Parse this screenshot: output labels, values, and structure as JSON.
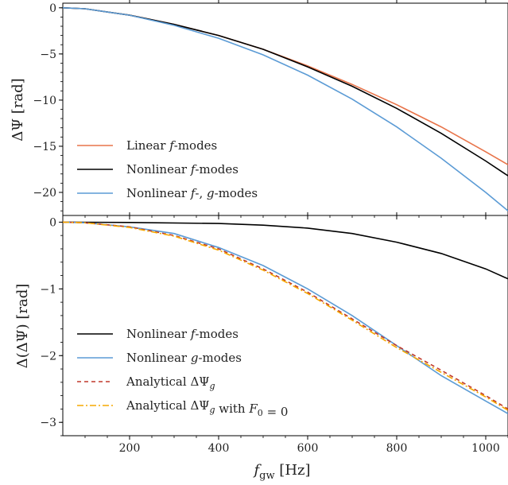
{
  "chart_data": [
    {
      "type": "line",
      "panel": "top",
      "title": "",
      "xlabel": "",
      "ylabel": "ΔΨ [rad]",
      "xlim": [
        50,
        1050
      ],
      "ylim": [
        -22.5,
        0.5
      ],
      "yticks": [
        0,
        -5,
        -10,
        -15,
        -20
      ],
      "ytick_labels": [
        "0",
        "−5",
        "−10",
        "−15",
        "−20"
      ],
      "xticks": [
        200,
        400,
        600,
        800,
        1000
      ],
      "legend_placement": "lower-left",
      "series": [
        {
          "name": "Linear f-modes",
          "legend_text": "Linear f-modes",
          "color": "#e8744a",
          "dash": "solid",
          "x": [
            50,
            100,
            200,
            300,
            400,
            500,
            600,
            700,
            800,
            900,
            1000,
            1050
          ],
          "y": [
            0,
            -0.1,
            -0.8,
            -1.8,
            -3.0,
            -4.5,
            -6.3,
            -8.3,
            -10.5,
            -12.9,
            -15.6,
            -17.0
          ]
        },
        {
          "name": "Nonlinear f-modes",
          "legend_text": "Nonlinear f-modes",
          "color": "#000000",
          "dash": "solid",
          "x": [
            50,
            100,
            200,
            300,
            400,
            500,
            600,
            700,
            800,
            900,
            1000,
            1050
          ],
          "y": [
            0,
            -0.1,
            -0.8,
            -1.8,
            -3.0,
            -4.5,
            -6.4,
            -8.5,
            -10.9,
            -13.6,
            -16.6,
            -18.2
          ]
        },
        {
          "name": "Nonlinear f-, g-modes",
          "legend_text": "Nonlinear f-, g-modes",
          "color": "#5b9bd5",
          "dash": "solid",
          "x": [
            50,
            100,
            200,
            300,
            400,
            500,
            600,
            700,
            800,
            900,
            1000,
            1050
          ],
          "y": [
            0,
            -0.1,
            -0.8,
            -1.9,
            -3.3,
            -5.1,
            -7.3,
            -9.9,
            -12.9,
            -16.3,
            -20.0,
            -22.0
          ]
        }
      ]
    },
    {
      "type": "line",
      "panel": "bottom",
      "title": "",
      "xlabel": "f_gw [Hz]",
      "ylabel": "Δ(ΔΨ) [rad]",
      "xlim": [
        50,
        1050
      ],
      "ylim": [
        -3.2,
        0.1
      ],
      "yticks": [
        0,
        -1,
        -2,
        -3
      ],
      "ytick_labels": [
        "0",
        "−1",
        "−2",
        "−3"
      ],
      "xticks": [
        200,
        400,
        600,
        800,
        1000
      ],
      "xtick_labels": [
        "200",
        "400",
        "600",
        "800",
        "1000"
      ],
      "legend_placement": "lower-left",
      "series": [
        {
          "name": "Nonlinear f-modes",
          "legend_text": "Nonlinear f-modes",
          "color": "#000000",
          "dash": "solid",
          "x": [
            50,
            200,
            400,
            500,
            600,
            700,
            800,
            900,
            1000,
            1050
          ],
          "y": [
            0,
            -0.005,
            -0.02,
            -0.045,
            -0.09,
            -0.17,
            -0.3,
            -0.47,
            -0.7,
            -0.85
          ]
        },
        {
          "name": "Nonlinear g-modes",
          "legend_text": "Nonlinear g-modes",
          "color": "#5b9bd5",
          "dash": "solid",
          "x": [
            50,
            100,
            200,
            300,
            400,
            500,
            600,
            700,
            800,
            900,
            1000,
            1050
          ],
          "y": [
            0,
            -0.01,
            -0.07,
            -0.17,
            -0.38,
            -0.65,
            -1.0,
            -1.4,
            -1.85,
            -2.3,
            -2.68,
            -2.87
          ]
        },
        {
          "name": "Analytical ΔΨ_g",
          "legend_text": "Analytical ΔΨ_g",
          "color": "#c0392b",
          "dash": "5,4",
          "x": [
            50,
            100,
            200,
            300,
            400,
            500,
            600,
            700,
            800,
            900,
            1000,
            1050
          ],
          "y": [
            0,
            -0.01,
            -0.07,
            -0.2,
            -0.4,
            -0.7,
            -1.05,
            -1.45,
            -1.85,
            -2.22,
            -2.6,
            -2.8
          ]
        },
        {
          "name": "Analytical ΔΨ_g with F_0 = 0",
          "legend_text": "Analytical ΔΨ_g with F_0 = 0",
          "color": "#f5a800",
          "dash": "8,3,2,3",
          "x": [
            50,
            100,
            200,
            300,
            400,
            500,
            600,
            700,
            800,
            900,
            1000,
            1050
          ],
          "y": [
            0,
            -0.01,
            -0.08,
            -0.21,
            -0.42,
            -0.72,
            -1.07,
            -1.47,
            -1.88,
            -2.25,
            -2.62,
            -2.82
          ]
        }
      ]
    }
  ]
}
